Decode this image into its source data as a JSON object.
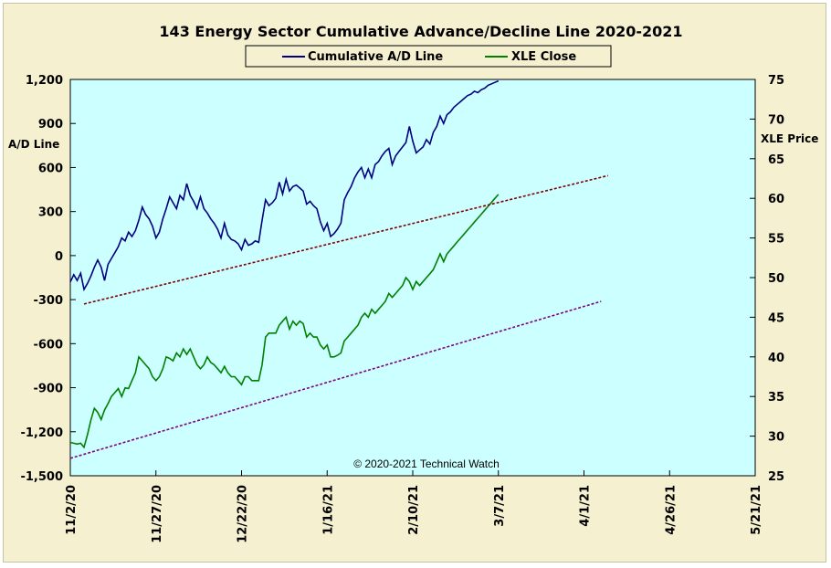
{
  "chart_data": {
    "type": "line",
    "title": "143 Energy Sector Cumulative Advance/Decline Line 2020-2021",
    "legend_placement": "top-center",
    "grid": false,
    "plot_background": "#ccffff",
    "copyright": "© 2020-2021  Technical Watch",
    "x_ticks": [
      "11/2/20",
      "11/27/20",
      "12/22/20",
      "1/16/21",
      "2/10/21",
      "3/7/21",
      "4/1/21",
      "4/26/21",
      "5/21/21"
    ],
    "x_range_days": [
      0,
      200
    ],
    "y_left": {
      "label": "A/D Line",
      "ylim": [
        -1500,
        1200
      ],
      "ticks": [
        "1,200",
        "900",
        "600",
        "300",
        "0",
        "-300",
        "-600",
        "-900",
        "-1,200",
        "-1,500"
      ]
    },
    "y_right": {
      "label": "XLE Price",
      "ylim": [
        25,
        75
      ],
      "ticks": [
        "75",
        "70",
        "65",
        "60",
        "55",
        "50",
        "45",
        "40",
        "35",
        "30",
        "25"
      ]
    },
    "series": [
      {
        "name": "Cumulative A/D Line",
        "axis": "left",
        "color": "#000080",
        "x": [
          0,
          1,
          2,
          3,
          4,
          5,
          6,
          7,
          8,
          9,
          10,
          11,
          12,
          13,
          14,
          15,
          16,
          17,
          18,
          19,
          20,
          21,
          22,
          23,
          24,
          25,
          26,
          27,
          28,
          29,
          30,
          31,
          32,
          33,
          34,
          35,
          36,
          37,
          38,
          39,
          40,
          41,
          42,
          43,
          44,
          45,
          46,
          47,
          48,
          49,
          50,
          51,
          52,
          53,
          54,
          55,
          56,
          57,
          58,
          59,
          60,
          61,
          62,
          63,
          64,
          65,
          66,
          67,
          68,
          69,
          70,
          71,
          72,
          73,
          74,
          75,
          76,
          77,
          78,
          79,
          80,
          81,
          82,
          83,
          84,
          85,
          86,
          87,
          88,
          89,
          90,
          91,
          92,
          93,
          94,
          95,
          96,
          97,
          98,
          99,
          100,
          101,
          102,
          103,
          104,
          105,
          106,
          107,
          108,
          109,
          110,
          111,
          112,
          113,
          114,
          115,
          116,
          117,
          118,
          119,
          120,
          121,
          122,
          123,
          124,
          125
        ],
        "values": [
          -180,
          -130,
          -170,
          -120,
          -230,
          -190,
          -140,
          -80,
          -30,
          -80,
          -170,
          -60,
          -20,
          20,
          60,
          120,
          100,
          160,
          130,
          170,
          240,
          330,
          280,
          250,
          200,
          120,
          160,
          250,
          320,
          400,
          360,
          320,
          410,
          380,
          490,
          410,
          370,
          320,
          400,
          320,
          290,
          250,
          220,
          180,
          120,
          220,
          140,
          110,
          100,
          80,
          40,
          110,
          70,
          80,
          100,
          90,
          240,
          380,
          340,
          360,
          390,
          500,
          420,
          520,
          440,
          470,
          480,
          460,
          440,
          350,
          370,
          340,
          320,
          230,
          170,
          220,
          130,
          150,
          180,
          220,
          380,
          430,
          470,
          530,
          570,
          600,
          530,
          590,
          530,
          620,
          640,
          680,
          710,
          730,
          620,
          680,
          710,
          740,
          770,
          880,
          780,
          700,
          720,
          740,
          790,
          760,
          840,
          880,
          950,
          900,
          960,
          980,
          1010,
          1030,
          1050,
          1070,
          1090,
          1100,
          1120,
          1110,
          1130,
          1140,
          1160,
          1170,
          1180,
          1190
        ]
      },
      {
        "name": "XLE Close",
        "axis": "right",
        "color": "#008000",
        "x": [
          0,
          1,
          2,
          3,
          4,
          5,
          6,
          7,
          8,
          9,
          10,
          11,
          12,
          13,
          14,
          15,
          16,
          17,
          18,
          19,
          20,
          21,
          22,
          23,
          24,
          25,
          26,
          27,
          28,
          29,
          30,
          31,
          32,
          33,
          34,
          35,
          36,
          37,
          38,
          39,
          40,
          41,
          42,
          43,
          44,
          45,
          46,
          47,
          48,
          49,
          50,
          51,
          52,
          53,
          54,
          55,
          56,
          57,
          58,
          59,
          60,
          61,
          62,
          63,
          64,
          65,
          66,
          67,
          68,
          69,
          70,
          71,
          72,
          73,
          74,
          75,
          76,
          77,
          78,
          79,
          80,
          81,
          82,
          83,
          84,
          85,
          86,
          87,
          88,
          89,
          90,
          91,
          92,
          93,
          94,
          95,
          96,
          97,
          98,
          99,
          100,
          101,
          102,
          103,
          104,
          105,
          106,
          107,
          108,
          109,
          110,
          111,
          112,
          113,
          114,
          115,
          116,
          117,
          118,
          119,
          120,
          121,
          122,
          123,
          124,
          125
        ],
        "values": [
          29.2,
          29.1,
          29.0,
          29.1,
          28.6,
          30.2,
          32.0,
          33.5,
          33.0,
          32.1,
          33.3,
          34.1,
          35.0,
          35.5,
          36.0,
          35.0,
          36.1,
          36.0,
          37.0,
          38.0,
          40.0,
          39.5,
          39.0,
          38.5,
          37.5,
          37.0,
          37.5,
          38.5,
          40.0,
          39.8,
          39.5,
          40.5,
          40.0,
          41.0,
          40.3,
          41.0,
          40.0,
          39.0,
          38.5,
          39.0,
          40.0,
          39.3,
          39.0,
          38.5,
          38.0,
          38.8,
          38.0,
          37.5,
          37.5,
          37.0,
          36.5,
          37.5,
          37.5,
          37.0,
          37.0,
          37.0,
          39.0,
          42.5,
          43.0,
          43.0,
          43.0,
          44.0,
          44.5,
          45.0,
          43.5,
          44.5,
          44.0,
          44.5,
          44.2,
          42.5,
          43.0,
          42.5,
          42.5,
          41.5,
          41.0,
          41.5,
          40.0,
          40.0,
          40.2,
          40.5,
          42.0,
          42.5,
          43.0,
          43.5,
          44.0,
          45.0,
          45.5,
          45.0,
          46.0,
          45.5,
          46.0,
          46.5,
          47.0,
          48.0,
          47.5,
          48.0,
          48.5,
          49.0,
          50.0,
          49.5,
          48.5,
          49.5,
          49.0,
          49.5,
          50.0,
          50.5,
          51.0,
          52.0,
          53.0,
          52.0,
          53.0,
          53.5,
          54.0,
          54.5,
          55.0,
          55.5,
          56.0,
          56.5,
          57.0,
          57.5,
          58.0,
          58.5,
          59.0,
          59.5,
          60.0,
          60.5
        ]
      },
      {
        "name": "",
        "axis": "left",
        "color": "#800000",
        "dashed": true,
        "x": [
          4,
          157
        ],
        "values": [
          -330,
          545
        ]
      },
      {
        "name": "",
        "axis": "right",
        "color": "#800080",
        "dashed": true,
        "x": [
          0,
          155
        ],
        "values": [
          27.2,
          47.0
        ]
      }
    ]
  }
}
